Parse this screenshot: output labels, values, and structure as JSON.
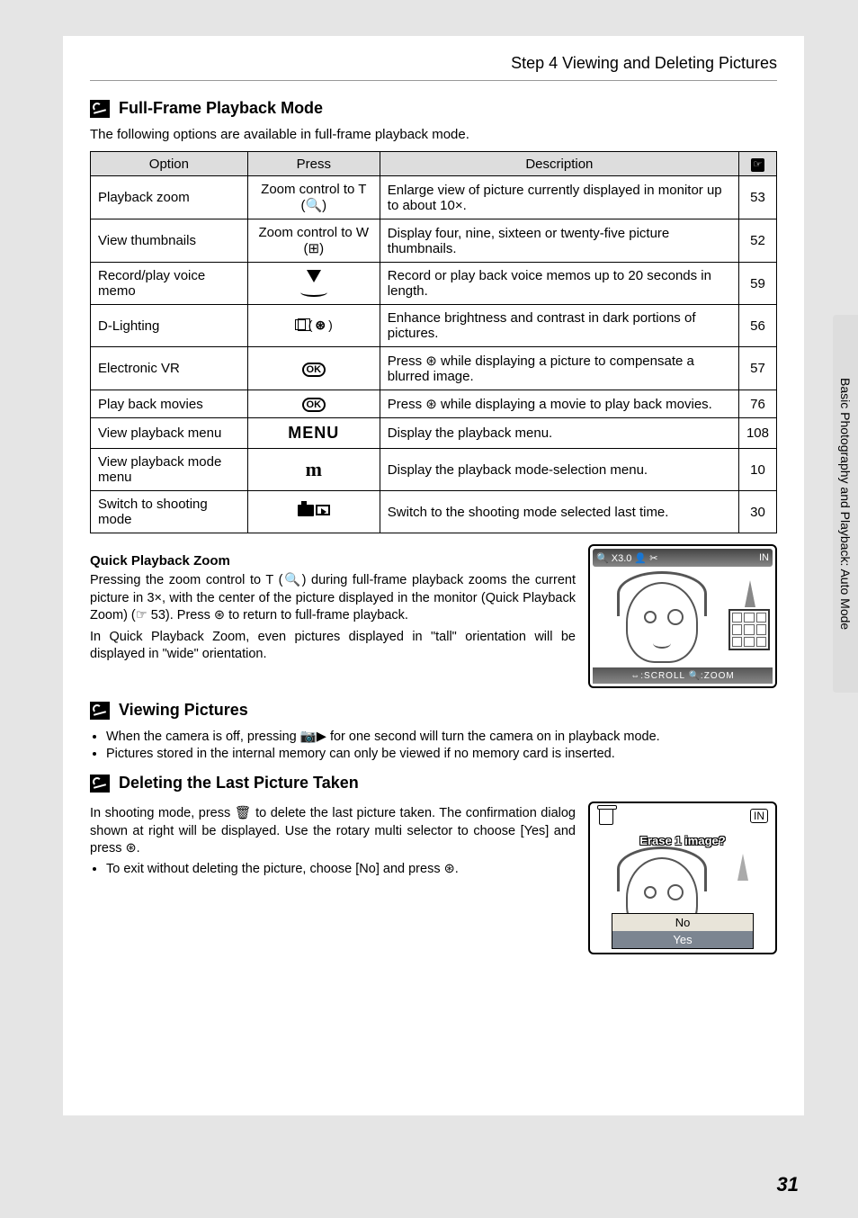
{
  "page_header": "Step 4 Viewing and Deleting Pictures",
  "side_tab": "Basic Photography and Playback: Auto Mode",
  "page_number": "31",
  "section1": {
    "title": "Full-Frame Playback Mode",
    "intro": "The following options are available in full-frame playback mode."
  },
  "table": {
    "head": {
      "c1": "Option",
      "c2": "Press",
      "c3": "Description",
      "c4": "☞"
    },
    "rows": [
      {
        "option": "Playback zoom",
        "press": "Zoom control to T (🔍)",
        "desc": "Enlarge view of picture currently displayed in monitor up to about 10×.",
        "pg": "53"
      },
      {
        "option": "View thumbnails",
        "press": "Zoom control to W (⊞)",
        "desc": "Display four, nine, sixteen or twenty-five picture thumbnails.",
        "pg": "52"
      },
      {
        "option": "Record/play voice memo",
        "press": "arrow",
        "desc": "Record or play back voice memos up to 20 seconds in length.",
        "pg": "59"
      },
      {
        "option": "D-Lighting",
        "press": "dlite",
        "desc": "Enhance brightness and contrast in dark portions of pictures.",
        "pg": "56"
      },
      {
        "option": "Electronic VR",
        "press": "ok",
        "desc": "Press ⊛ while displaying a picture to compensate a blurred image.",
        "pg": "57"
      },
      {
        "option": "Play back movies",
        "press": "ok",
        "desc": "Press ⊛ while displaying a movie to play back movies.",
        "pg": "76"
      },
      {
        "option": "View playback menu",
        "press": "menu",
        "desc": "Display the playback menu.",
        "pg": "108"
      },
      {
        "option": "View playback mode menu",
        "press": "m",
        "desc": "Display the playback mode-selection menu.",
        "pg": "10"
      },
      {
        "option": "Switch to shooting mode",
        "press": "camplay",
        "desc": "Switch to the shooting mode selected last time.",
        "pg": "30"
      }
    ]
  },
  "qpz": {
    "title": "Quick Playback Zoom",
    "p1": "Pressing the zoom control to T (🔍) during full-frame playback zooms the current picture in 3×, with the center of the picture displayed in the monitor (Quick Playback Zoom) (☞ 53). Press ⊛ to return to full-frame playback.",
    "p2": "In Quick Playback Zoom, even pictures displayed in \"tall\" orientation will be displayed in \"wide\" orientation.",
    "thumb_top_left": "🔍 X3.0  👤 ✂",
    "thumb_top_right": "IN",
    "thumb_bot": "⇔:SCROLL  🔍:ZOOM"
  },
  "viewing": {
    "title": "Viewing Pictures",
    "b1": "When the camera is off, pressing 📷▶ for one second will turn the camera on in playback mode.",
    "b2": "Pictures stored in the internal memory can only be viewed if no memory card is inserted."
  },
  "deleting": {
    "title": "Deleting the Last Picture Taken",
    "p1": "In shooting mode, press 🗑 to delete the last picture taken. The confirmation dialog shown at right will be displayed. Use the rotary multi selector to choose [Yes] and press ⊛.",
    "b1": "To exit without deleting the picture, choose [No] and press ⊛.",
    "thumb_prompt": "Erase 1 image?",
    "thumb_no": "No",
    "thumb_yes": "Yes",
    "thumb_mem": "IN"
  }
}
